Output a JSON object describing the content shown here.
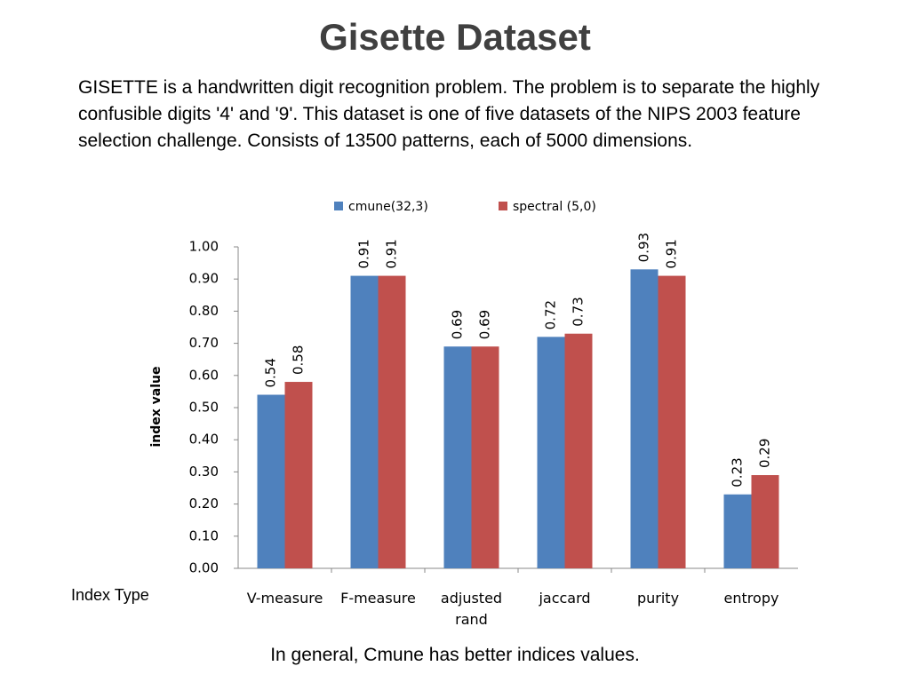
{
  "title": "Gisette Dataset",
  "description": "GISETTE is a handwritten digit recognition problem. The problem is to separate the highly confusible digits '4' and '9'. This dataset is one of five datasets of the NIPS 2003 feature selection challenge. Consists of 13500 patterns, each of 5000 dimensions.",
  "chart_data": {
    "type": "bar",
    "xlabel": "Index Type",
    "ylabel": "index value",
    "categories": [
      "V-measure",
      "F-measure",
      "adjusted rand",
      "jaccard",
      "purity",
      "entropy"
    ],
    "series": [
      {
        "name": "cmune(32,3)",
        "color": "#4f81bd",
        "values": [
          0.54,
          0.91,
          0.69,
          0.72,
          0.93,
          0.23
        ]
      },
      {
        "name": "spectral (5,0)",
        "color": "#c0504d",
        "values": [
          0.58,
          0.91,
          0.69,
          0.73,
          0.91,
          0.29
        ]
      }
    ],
    "ylim": [
      0,
      1
    ],
    "yticks": [
      {
        "value": 0,
        "label": "0.00"
      },
      {
        "value": 0.1,
        "label": "0.10"
      },
      {
        "value": 0.2,
        "label": "0.20"
      },
      {
        "value": 0.3,
        "label": "0.30"
      },
      {
        "value": 0.4,
        "label": "0.40"
      },
      {
        "value": 0.5,
        "label": "0.50"
      },
      {
        "value": 0.6,
        "label": "0.60"
      },
      {
        "value": 0.7,
        "label": "0.70"
      },
      {
        "value": 0.8,
        "label": "0.80"
      },
      {
        "value": 0.9,
        "label": "0.90"
      },
      {
        "value": 1,
        "label": "1.00"
      }
    ],
    "grid": false,
    "legend": "top"
  },
  "caption": "In general, Cmune has better indices values."
}
